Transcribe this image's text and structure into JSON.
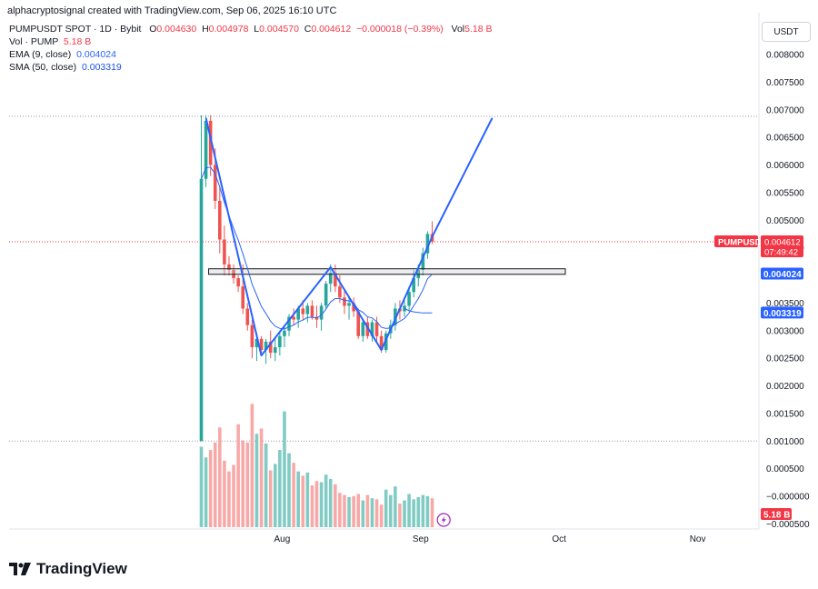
{
  "header": {
    "created_line": "alphacryptosignal created with TradingView.com, Sep 06, 2025 16:10 UTC"
  },
  "legend": {
    "symbol": "PUMPUSDT SPOT · 1D · Bybit",
    "o_label": "O",
    "o_value": "0.004630",
    "h_label": "H",
    "h_value": "0.004978",
    "l_label": "L",
    "l_value": "0.004570",
    "c_label": "C",
    "c_value": "0.004612",
    "change": "−0.000018 (−0.39%)",
    "vol_label": "Vol",
    "vol_value": "5.18 B",
    "vol_row_label": "Vol · PUMP",
    "vol_row_value": "5.18 B",
    "ema_label": "EMA (9, close)",
    "ema_value": "0.004024",
    "sma_label": "SMA (50, close)",
    "sma_value": "0.003319"
  },
  "currency_button": "USDT",
  "badges": {
    "price_symbol": "PUMPUSDT",
    "price_value": "0.004612",
    "countdown": "07:49:42",
    "ema_badge": "0.004024",
    "sma_badge": "0.003319",
    "volume_badge": "5.18 B"
  },
  "footer": {
    "brand": "TradingView"
  },
  "colors": {
    "up": "#26a69a",
    "down": "#ef5350",
    "vol_up": "#80cbc4",
    "vol_down": "#f7a9a7",
    "ema": "#2962ff",
    "sma": "#2962ff",
    "drawing": "#2962ff",
    "price_badge": "#f23645",
    "ema_badge": "#2962ff"
  },
  "chart_data": {
    "type": "candlestick",
    "y_ticks": [
      "0.008000",
      "0.007500",
      "0.007000",
      "0.006500",
      "0.006000",
      "0.005500",
      "0.005000",
      "0.004500",
      "0.003500",
      "0.003000",
      "0.002500",
      "0.002000",
      "0.001500",
      "0.001000",
      "0.000500",
      "−0.000000",
      "−0.000500"
    ],
    "x_ticks": [
      "Aug",
      "Sep",
      "Oct",
      "Nov"
    ],
    "ylim": [
      -0.0005,
      0.0085
    ],
    "horizontal_lines": [
      0.00688,
      0.001
    ],
    "zone": {
      "from": 0.00402,
      "to": 0.00412
    },
    "projection": [
      [
        0.00425,
        0.00685
      ]
    ],
    "candles": [
      [
        0.001,
        0.0069,
        0.001,
        0.00575
      ],
      [
        0.00575,
        0.0069,
        0.0056,
        0.0068
      ],
      [
        0.0068,
        0.0069,
        0.0058,
        0.006
      ],
      [
        0.006,
        0.0063,
        0.0052,
        0.00535
      ],
      [
        0.00535,
        0.0056,
        0.0044,
        0.00465
      ],
      [
        0.00465,
        0.0049,
        0.004,
        0.0042
      ],
      [
        0.0042,
        0.00435,
        0.004,
        0.0041
      ],
      [
        0.0041,
        0.0042,
        0.00385,
        0.00395
      ],
      [
        0.00395,
        0.004,
        0.0037,
        0.0038
      ],
      [
        0.0038,
        0.0042,
        0.0033,
        0.0034
      ],
      [
        0.0034,
        0.0035,
        0.003,
        0.0031
      ],
      [
        0.0031,
        0.0032,
        0.0025,
        0.0027
      ],
      [
        0.0027,
        0.0029,
        0.00245,
        0.00285
      ],
      [
        0.00285,
        0.0029,
        0.00255,
        0.00265
      ],
      [
        0.00265,
        0.00285,
        0.0024,
        0.0028
      ],
      [
        0.0028,
        0.003,
        0.0025,
        0.0026
      ],
      [
        0.0026,
        0.00285,
        0.00245,
        0.0027
      ],
      [
        0.0027,
        0.003,
        0.00255,
        0.0029
      ],
      [
        0.0029,
        0.0031,
        0.0027,
        0.003
      ],
      [
        0.003,
        0.0033,
        0.0029,
        0.00325
      ],
      [
        0.00325,
        0.0034,
        0.0031,
        0.0032
      ],
      [
        0.0032,
        0.00345,
        0.00305,
        0.0034
      ],
      [
        0.0034,
        0.00355,
        0.0032,
        0.0033
      ],
      [
        0.0033,
        0.0035,
        0.00315,
        0.00345
      ],
      [
        0.00345,
        0.00355,
        0.0032,
        0.00325
      ],
      [
        0.00325,
        0.00345,
        0.00305,
        0.0032
      ],
      [
        0.0032,
        0.0035,
        0.003,
        0.00345
      ],
      [
        0.00345,
        0.0039,
        0.0034,
        0.00385
      ],
      [
        0.00385,
        0.0042,
        0.0037,
        0.00405
      ],
      [
        0.00405,
        0.0042,
        0.0037,
        0.0038
      ],
      [
        0.0038,
        0.004,
        0.0035,
        0.0036
      ],
      [
        0.0036,
        0.00375,
        0.0033,
        0.00345
      ],
      [
        0.00345,
        0.0036,
        0.0032,
        0.0035
      ],
      [
        0.0035,
        0.0036,
        0.00325,
        0.00335
      ],
      [
        0.00335,
        0.0034,
        0.00285,
        0.0029
      ],
      [
        0.0029,
        0.0032,
        0.0028,
        0.00315
      ],
      [
        0.00315,
        0.00325,
        0.00285,
        0.0029
      ],
      [
        0.0029,
        0.0032,
        0.0028,
        0.00315
      ],
      [
        0.00315,
        0.00325,
        0.0028,
        0.0029
      ],
      [
        0.0029,
        0.003,
        0.0026,
        0.00265
      ],
      [
        0.00265,
        0.003,
        0.0026,
        0.00295
      ],
      [
        0.00295,
        0.0032,
        0.00285,
        0.0031
      ],
      [
        0.0031,
        0.0035,
        0.003,
        0.0034
      ],
      [
        0.0034,
        0.00355,
        0.0032,
        0.00335
      ],
      [
        0.00335,
        0.0036,
        0.00325,
        0.00345
      ],
      [
        0.00345,
        0.0038,
        0.00335,
        0.0037
      ],
      [
        0.0037,
        0.0041,
        0.0036,
        0.00395
      ],
      [
        0.00395,
        0.0042,
        0.0038,
        0.0041
      ],
      [
        0.0041,
        0.0045,
        0.004,
        0.0044
      ],
      [
        0.0044,
        0.0048,
        0.0043,
        0.00475
      ],
      [
        0.00475,
        0.00498,
        0.00457,
        0.00461
      ]
    ],
    "volumes": [
      0.00075,
      0.00065,
      0.00072,
      0.00079,
      0.00093,
      0.00062,
      0.00052,
      0.00058,
      0.00096,
      0.00081,
      0.00079,
      0.00115,
      0.00087,
      0.00092,
      0.00078,
      0.00053,
      0.00059,
      0.00072,
      0.00108,
      0.00069,
      0.0006,
      0.00052,
      0.00048,
      0.00051,
      0.00039,
      0.00043,
      0.00042,
      0.00049,
      0.00045,
      0.0004,
      0.00032,
      0.0003,
      0.00028,
      0.00029,
      0.00031,
      0.00025,
      0.0003,
      0.00027,
      0.00026,
      0.00021,
      0.00035,
      0.0003,
      0.00038,
      0.00022,
      0.00025,
      0.00031,
      0.00026,
      0.00028,
      0.0003,
      0.00029,
      0.00027
    ],
    "ema": [
      0.00575,
      0.00595,
      0.00596,
      0.00584,
      0.0056,
      0.00532,
      0.00508,
      0.00485,
      0.00464,
      0.00439,
      0.00413,
      0.00384,
      0.00364,
      0.00344,
      0.00331,
      0.00317,
      0.00308,
      0.00304,
      0.00303,
      0.00307,
      0.0031,
      0.00316,
      0.00319,
      0.00324,
      0.00324,
      0.00323,
      0.00328,
      0.00339,
      0.00352,
      0.00358,
      0.00358,
      0.00355,
      0.00354,
      0.0035,
      0.00338,
      0.00333,
      0.00325,
      0.00323,
      0.00316,
      0.00306,
      0.00304,
      0.00305,
      0.00312,
      0.00317,
      0.00322,
      0.00332,
      0.00345,
      0.00358,
      0.00374,
      0.00394,
      0.00402
    ],
    "sma": [
      null,
      null,
      null,
      null,
      null,
      null,
      null,
      null,
      null,
      null,
      null,
      null,
      null,
      null,
      null,
      null,
      null,
      null,
      null,
      null,
      null,
      null,
      null,
      null,
      null,
      null,
      null,
      null,
      null,
      null,
      null,
      null,
      null,
      null,
      null,
      null,
      null,
      null,
      null,
      null,
      null,
      null,
      null,
      null,
      0.0034,
      0.00336,
      0.00334,
      0.00333,
      0.00332,
      0.00332,
      0.00332
    ],
    "drawn_path": [
      [
        1,
        0.00685
      ],
      [
        13,
        0.00255
      ],
      [
        28,
        0.00415
      ],
      [
        39,
        0.00265
      ],
      [
        50,
        0.0047
      ],
      [
        63,
        0.00685
      ]
    ]
  }
}
